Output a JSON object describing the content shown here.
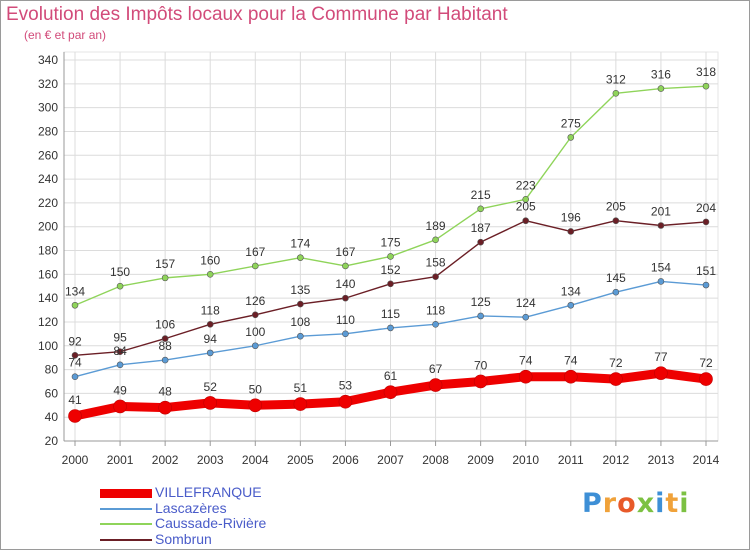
{
  "title": "Evolution des Impôts locaux pour la Commune par Habitant",
  "subtitle": "(en € et par an)",
  "logo": {
    "text": "Proxiti"
  },
  "colors": {
    "villefranque": "#ee0000",
    "lascazeres": "#5b9bd5",
    "caussade": "#8fd45a",
    "sombrun": "#6b1f26",
    "grid": "#dcdcdc",
    "axis_text": "#333333",
    "title": "#d24b7a"
  },
  "chart_data": {
    "type": "line",
    "x": [
      2000,
      2001,
      2002,
      2003,
      2004,
      2005,
      2006,
      2007,
      2008,
      2009,
      2010,
      2011,
      2012,
      2013,
      2014
    ],
    "ylim": [
      20,
      340
    ],
    "yticks": [
      20,
      40,
      60,
      80,
      100,
      120,
      140,
      160,
      180,
      200,
      220,
      240,
      260,
      280,
      300,
      320,
      340
    ],
    "grid": true,
    "legend_position": "bottom-left",
    "xlabel": "",
    "ylabel": "",
    "series": [
      {
        "name": "VILLEFRANQUE",
        "key": "villefranque",
        "values": [
          41,
          49,
          48,
          52,
          50,
          51,
          53,
          61,
          67,
          70,
          74,
          74,
          72,
          77,
          72
        ]
      },
      {
        "name": "Lascazères",
        "key": "lascazeres",
        "values": [
          74,
          84,
          88,
          94,
          100,
          108,
          110,
          115,
          118,
          125,
          124,
          134,
          145,
          154,
          151
        ]
      },
      {
        "name": "Caussade-Rivière",
        "key": "caussade",
        "values": [
          134,
          150,
          157,
          160,
          167,
          174,
          167,
          175,
          189,
          215,
          223,
          275,
          312,
          316,
          318
        ]
      },
      {
        "name": "Sombrun",
        "key": "sombrun",
        "values": [
          92,
          95,
          106,
          118,
          126,
          135,
          140,
          152,
          158,
          187,
          205,
          196,
          205,
          201,
          204
        ]
      }
    ]
  }
}
